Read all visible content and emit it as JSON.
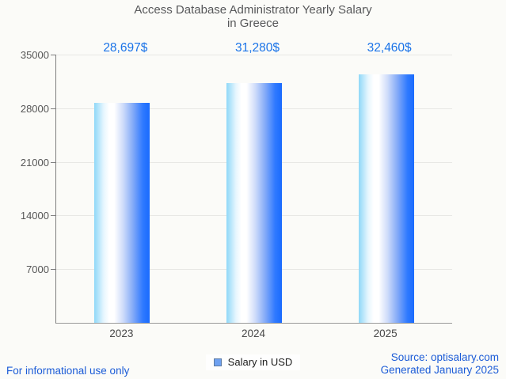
{
  "title_line1": "Access Database Administrator Yearly Salary",
  "title_line2": "in Greece",
  "chart_data": {
    "type": "bar",
    "title": "Access Database Administrator Yearly Salary in Greece",
    "categories": [
      "2023",
      "2024",
      "2025"
    ],
    "series": [
      {
        "name": "Salary in USD",
        "values": [
          28697,
          31280,
          32460
        ]
      }
    ],
    "value_labels": [
      "28,697$",
      "31,280$",
      "32,460$"
    ],
    "xlabel": "",
    "ylabel": "",
    "ylim": [
      0,
      35000
    ],
    "yticks": [
      7000,
      14000,
      21000,
      28000,
      35000
    ],
    "grid": true,
    "legend_position": "bottom-center",
    "bar_gradient": [
      "#8fd8f8",
      "#ffffff",
      "#1a6bfe"
    ]
  },
  "legend": {
    "label": "Salary in USD",
    "swatch_fill": "#6fa1f1",
    "swatch_border": "#5d7ba3"
  },
  "footer": {
    "left": "For informational use only",
    "source": "Source: optisalary.com",
    "generated": "Generated January 2025"
  },
  "colors": {
    "title": "#57585a",
    "value_label": "#1a73e8",
    "footer_link": "#1c5cd7",
    "axis": "#7e7e7e",
    "grid_line": "#e7e7e4",
    "tick_label": "#565656"
  }
}
